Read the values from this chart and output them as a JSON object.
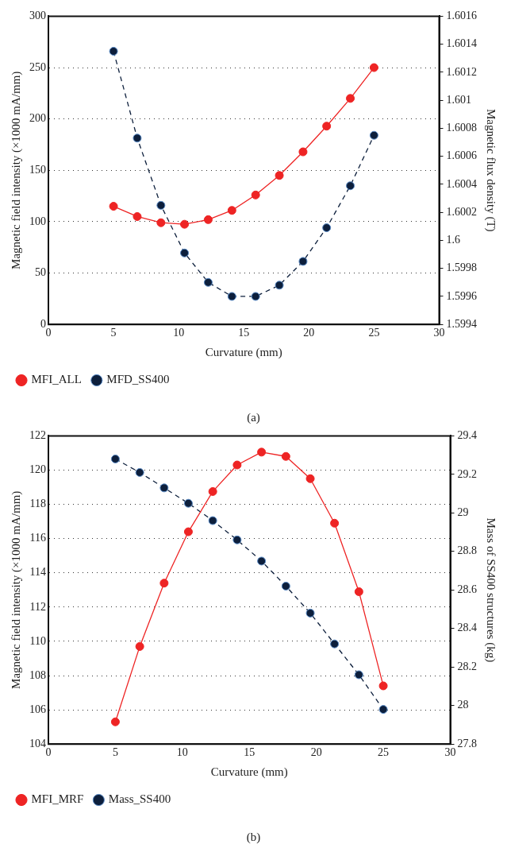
{
  "chart_data": [
    {
      "type": "line",
      "xlabel": "Curvature (mm)",
      "ylabel": "Magnetic field intensity (×1000 mA/mm)",
      "y2label": "Magnetic flux density (T)",
      "x": [
        5,
        6.82,
        8.64,
        10.45,
        12.27,
        14.09,
        15.91,
        17.73,
        19.55,
        21.36,
        23.18,
        25
      ],
      "series": [
        {
          "name": "MFI_ALL",
          "color": "#ee2424",
          "line_style": "solid",
          "values": [
            115,
            105,
            99,
            97.5,
            102,
            111,
            126,
            145,
            168,
            193,
            220,
            250
          ]
        },
        {
          "name": "MFD_SS400",
          "color": "#0d1f3c",
          "line_style": "dashed",
          "axis": "y2",
          "values": [
            1.60135,
            1.60073,
            1.60025,
            1.59991,
            1.5997,
            1.5996,
            1.5996,
            1.59968,
            1.59985,
            1.60009,
            1.60039,
            1.60075
          ]
        }
      ],
      "marker": "circle",
      "xlim": [
        0,
        30
      ],
      "xticks": [
        0,
        5,
        10,
        15,
        20,
        25,
        30
      ],
      "ylim": [
        0,
        300
      ],
      "yticks": [
        0,
        50,
        100,
        150,
        200,
        250,
        300
      ],
      "y2lim": [
        1.5994,
        1.6016
      ],
      "y2ticks": [
        1.5994,
        1.5996,
        1.5998,
        1.6,
        1.6002,
        1.6004,
        1.6006,
        1.6008,
        1.601,
        1.6012,
        1.6014,
        1.6016
      ],
      "grid": "y",
      "legend": "bottom left",
      "annotations": [
        "(a)"
      ]
    },
    {
      "type": "line",
      "xlabel": "Curvature (mm)",
      "ylabel": "Magnetic field intensity (×1000 mA/mm)",
      "y2label": "Mass of SS400 structures (kg)",
      "x": [
        5,
        6.82,
        8.64,
        10.45,
        12.27,
        14.09,
        15.91,
        17.73,
        19.55,
        21.36,
        23.18,
        25
      ],
      "series": [
        {
          "name": "MFI_MRF",
          "color": "#ee2424",
          "line_style": "solid",
          "values": [
            105.3,
            109.7,
            113.4,
            116.4,
            118.75,
            120.3,
            121.05,
            120.8,
            119.5,
            116.9,
            112.9,
            107.4
          ]
        },
        {
          "name": "Mass_SS400",
          "color": "#0d1f3c",
          "line_style": "dashed",
          "axis": "y2",
          "values": [
            29.28,
            29.21,
            29.13,
            29.05,
            28.96,
            28.86,
            28.75,
            28.62,
            28.48,
            28.32,
            28.16,
            27.98
          ]
        }
      ],
      "marker": "circle",
      "xlim": [
        0,
        30
      ],
      "xticks": [
        0,
        5,
        10,
        15,
        20,
        25,
        30
      ],
      "ylim": [
        104,
        122
      ],
      "yticks": [
        104,
        106,
        108,
        110,
        112,
        114,
        116,
        118,
        120,
        122
      ],
      "y2lim": [
        27.8,
        29.4
      ],
      "y2ticks": [
        27.8,
        28,
        28.2,
        28.4,
        28.6,
        28.8,
        29,
        29.2,
        29.4
      ],
      "grid": "y",
      "legend": "bottom left",
      "annotations": [
        "(b)"
      ]
    }
  ]
}
